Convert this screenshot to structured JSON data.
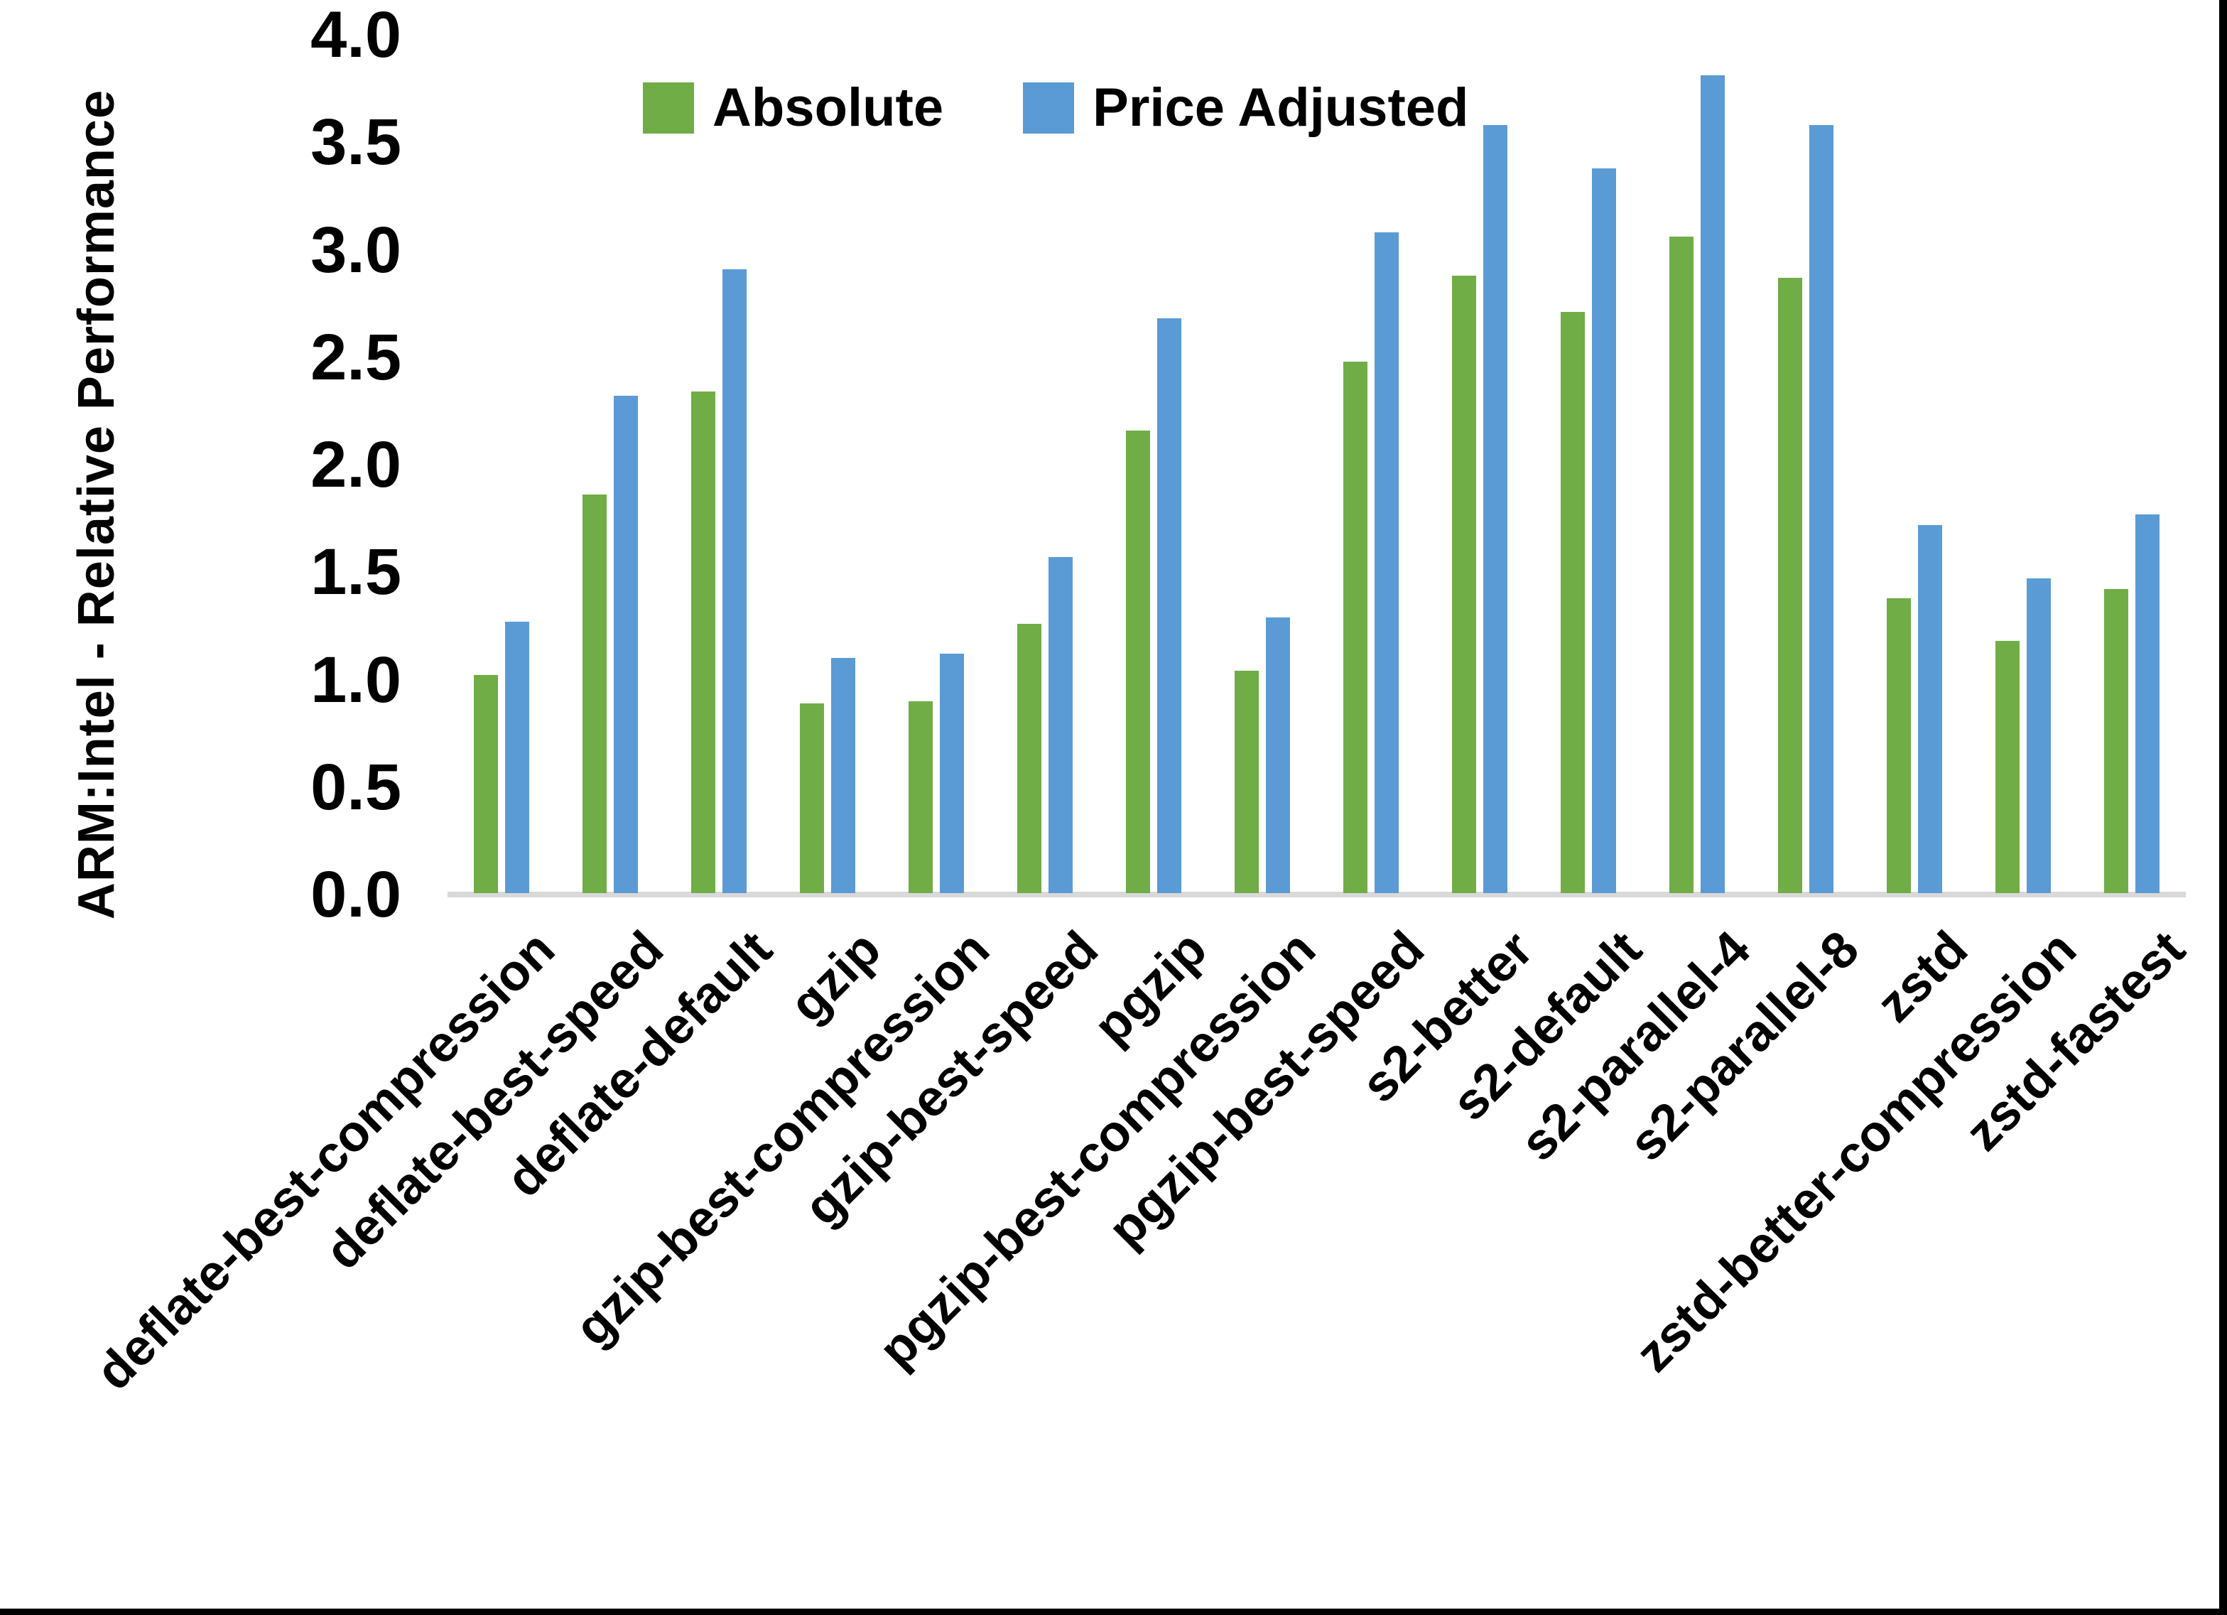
{
  "page": {
    "background": "#ffffff",
    "frame_border_color": "#000000"
  },
  "chart_data": {
    "type": "bar",
    "title": "",
    "xlabel": "",
    "ylabel": "ARM:Intel - Relative Performance",
    "ylim": [
      0.0,
      4.0
    ],
    "ytick_step": 0.5,
    "yticks": [
      "0.0",
      "0.5",
      "1.0",
      "1.5",
      "2.0",
      "2.5",
      "3.0",
      "3.5",
      "4.0"
    ],
    "grid": false,
    "legend_position": "top-center",
    "axis_line_color": "#D9D9D9",
    "text_color": "#000000",
    "categories": [
      "deflate-best-compression",
      "deflate-best-speed",
      "deflate-default",
      "gzip",
      "gzip-best-compression",
      "gzip-best-speed",
      "pgzip",
      "pgzip-best-compression",
      "pgzip-best-speed",
      "s2-better",
      "s2-default",
      "s2-parallel-4",
      "s2-parallel-8",
      "zstd",
      "zstd-better-compression",
      "zstd-fastest"
    ],
    "series": [
      {
        "name": "Absolute",
        "color": "#70AD47",
        "values": [
          1.02,
          1.86,
          2.34,
          0.89,
          0.9,
          1.26,
          2.16,
          1.04,
          2.48,
          2.88,
          2.71,
          3.06,
          2.87,
          1.38,
          1.18,
          1.42
        ]
      },
      {
        "name": "Price Adjusted",
        "color": "#5B9BD5",
        "values": [
          1.27,
          2.32,
          2.91,
          1.1,
          1.12,
          1.57,
          2.68,
          1.29,
          3.08,
          3.58,
          3.38,
          3.81,
          3.58,
          1.72,
          1.47,
          1.77
        ]
      }
    ]
  }
}
